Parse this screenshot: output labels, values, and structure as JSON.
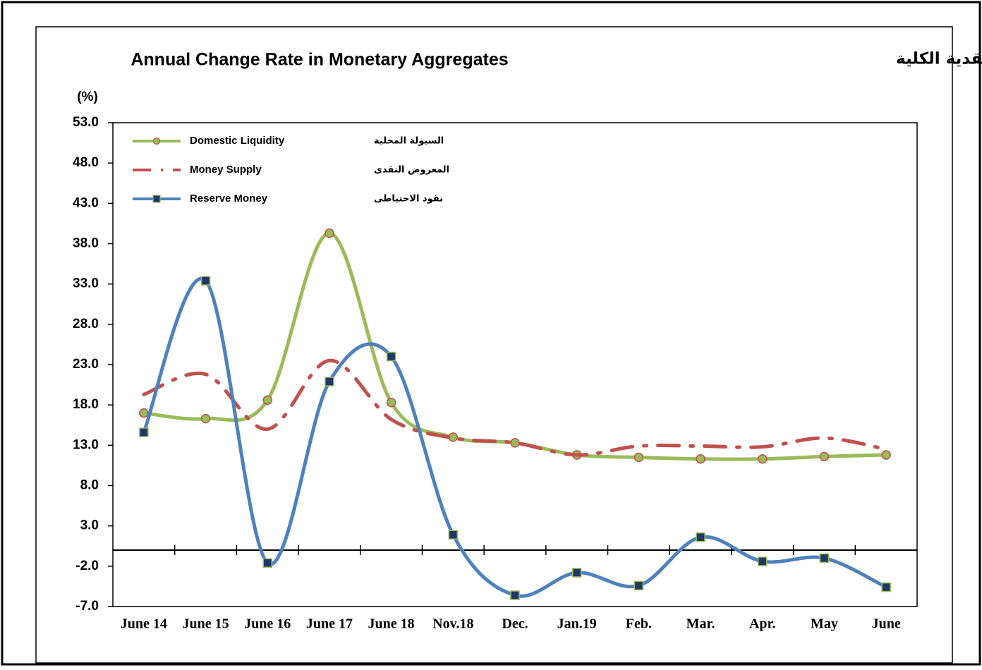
{
  "chart_data": {
    "type": "line",
    "title": "Annual Change Rate in Monetary Aggregates",
    "title_ar": "معدل التغير السنوي في المتغيرات النقدية الكلية",
    "y_label": "(%)",
    "categories": [
      "June 14",
      "June 15",
      "June 16",
      "June 17",
      "June 18",
      "Nov.18",
      "Dec.",
      "Jan.19",
      "Feb.",
      "Mar.",
      "Apr.",
      "May",
      "June"
    ],
    "series": [
      {
        "name": "Domestic Liquidity",
        "name_ar": "السيولة المحلية",
        "color": "#9bbb59",
        "values": [
          17.0,
          16.3,
          18.6,
          39.3,
          18.3,
          14.0,
          13.3,
          11.8,
          11.5,
          11.3,
          11.3,
          11.6,
          11.8
        ]
      },
      {
        "name": "Money Supply",
        "name_ar": "المعروض النقدى",
        "color": "#c0504d",
        "values": [
          19.3,
          21.8,
          15.0,
          23.5,
          16.2,
          13.9,
          13.3,
          11.8,
          12.9,
          12.9,
          12.8,
          13.9,
          12.5
        ]
      },
      {
        "name": "Reserve Money",
        "name_ar": "نقود الاحتياطى",
        "color": "#4f81bd",
        "values": [
          14.6,
          33.4,
          -1.6,
          20.9,
          24.0,
          1.9,
          -5.6,
          -2.8,
          -4.4,
          1.6,
          -1.4,
          -1.0,
          -4.6
        ]
      }
    ],
    "ylim": [
      -7,
      53
    ],
    "yticks": [
      {
        "value": 53,
        "label": "53.0"
      },
      {
        "value": 48,
        "label": "48.0"
      },
      {
        "value": 43,
        "label": "43.0"
      },
      {
        "value": 38,
        "label": "38.0"
      },
      {
        "value": 33,
        "label": "33.0"
      },
      {
        "value": 28,
        "label": "28.0"
      },
      {
        "value": 23,
        "label": "23.0"
      },
      {
        "value": 18,
        "label": "18.0"
      },
      {
        "value": 13,
        "label": "13.0"
      },
      {
        "value": 8,
        "label": "8.0"
      },
      {
        "value": 3,
        "label": "3.0"
      },
      {
        "value": -2,
        "label": "-2.0"
      },
      {
        "value": -7,
        "label": "-7.0"
      }
    ],
    "grid": false
  }
}
